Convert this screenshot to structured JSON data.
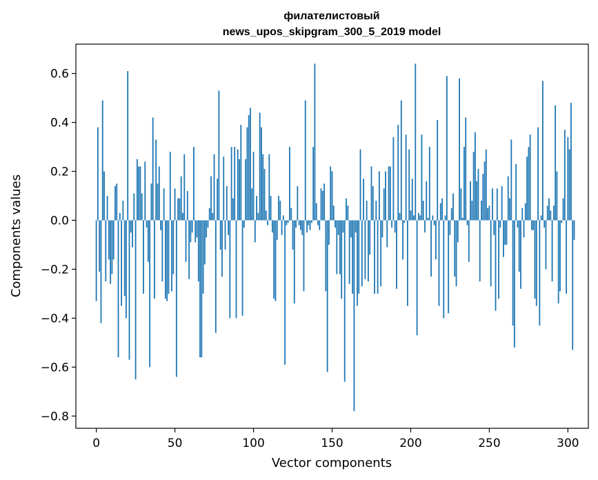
{
  "chart_data": {
    "type": "bar",
    "title": "филателистовый",
    "subtitle": "news_upos_skipgram_300_5_2019 model",
    "xlabel": "Vector components",
    "ylabel": "Components values",
    "xlim": [
      -13,
      313
    ],
    "ylim": [
      -0.85,
      0.72
    ],
    "xticks": [
      0,
      50,
      100,
      150,
      200,
      250,
      300
    ],
    "yticks": [
      -0.8,
      -0.6,
      -0.4,
      -0.2,
      0.0,
      0.2,
      0.4,
      0.6
    ],
    "ytick_labels": [
      "−0.8",
      "−0.6",
      "−0.4",
      "−0.2",
      "0.0",
      "0.2",
      "0.4",
      "0.6"
    ],
    "xtick_labels": [
      "0",
      "50",
      "100",
      "150",
      "200",
      "250",
      "300"
    ],
    "bar_color": "#1f77b4",
    "grid": false,
    "values": [
      -0.33,
      0.38,
      -0.21,
      -0.42,
      0.49,
      0.2,
      -0.25,
      0.1,
      -0.16,
      -0.26,
      -0.22,
      -0.16,
      0.14,
      0.15,
      -0.56,
      0.03,
      -0.35,
      0.08,
      -0.31,
      -0.4,
      0.61,
      -0.57,
      -0.05,
      -0.11,
      0.11,
      -0.65,
      0.25,
      0.22,
      0.22,
      0.11,
      -0.3,
      0.24,
      -0.03,
      -0.17,
      -0.6,
      0.15,
      0.42,
      -0.32,
      0.33,
      0.15,
      0.22,
      -0.04,
      -0.25,
      0.13,
      -0.32,
      -0.33,
      -0.3,
      0.28,
      -0.29,
      -0.22,
      0.13,
      -0.64,
      0.09,
      0.09,
      0.18,
      0.03,
      0.27,
      -0.17,
      0.12,
      -0.24,
      -0.09,
      -0.05,
      0.3,
      -0.09,
      -0.07,
      -0.25,
      -0.56,
      -0.56,
      -0.3,
      -0.18,
      -0.07,
      -0.03,
      0.05,
      0.18,
      0.03,
      0.27,
      -0.46,
      0.17,
      0.53,
      -0.12,
      -0.23,
      0.26,
      -0.12,
      0.14,
      -0.06,
      -0.4,
      0.3,
      0.09,
      0.3,
      -0.4,
      0.29,
      0.25,
      0.39,
      -0.39,
      -0.03,
      0.25,
      0.38,
      0.43,
      0.46,
      0.13,
      0.28,
      -0.09,
      0.1,
      0.03,
      0.44,
      0.38,
      0.27,
      0.21,
      0.04,
      -0.02,
      0.27,
      0.1,
      -0.05,
      -0.32,
      -0.33,
      -0.08,
      0.1,
      0.08,
      -0.06,
      0.02,
      -0.59,
      -0.02,
      -0.01,
      0.3,
      0.05,
      -0.12,
      -0.34,
      -0.03,
      0.14,
      -0.02,
      -0.04,
      -0.06,
      -0.29,
      0.49,
      -0.05,
      -0.02,
      -0.04,
      -0.01,
      0.3,
      0.64,
      0.07,
      -0.02,
      -0.04,
      0.13,
      0.12,
      0.15,
      -0.29,
      -0.62,
      -0.1,
      0.22,
      0.2,
      0.06,
      -0.03,
      -0.22,
      -0.06,
      -0.22,
      -0.32,
      -0.05,
      -0.66,
      0.09,
      0.06,
      -0.26,
      -0.07,
      -0.3,
      -0.78,
      -0.05,
      -0.35,
      -0.3,
      0.29,
      -0.27,
      0.17,
      -0.24,
      0.08,
      -0.25,
      -0.14,
      0.22,
      0.14,
      -0.3,
      0.08,
      -0.3,
      0.2,
      -0.27,
      -0.07,
      0.13,
      0.2,
      -0.11,
      0.22,
      0.22,
      -0.03,
      0.34,
      -0.05,
      -0.28,
      0.39,
      0.03,
      0.49,
      -0.16,
      -0.01,
      0.35,
      -0.35,
      0.29,
      0.04,
      0.17,
      0.02,
      0.64,
      -0.47,
      0.03,
      0.02,
      0.35,
      0.08,
      -0.05,
      0.16,
      0.01,
      0.3,
      -0.23,
      0.02,
      -0.02,
      -0.16,
      0.41,
      -0.35,
      0.07,
      0.09,
      -0.4,
      0.02,
      0.59,
      -0.38,
      -0.06,
      0.05,
      0.11,
      -0.23,
      -0.27,
      -0.09,
      0.58,
      0.13,
      0.01,
      0.3,
      0.42,
      -0.02,
      -0.17,
      0.16,
      0.08,
      0.28,
      0.36,
      0.16,
      0.21,
      -0.25,
      0.08,
      0.19,
      0.24,
      0.29,
      0.05,
      0.06,
      -0.27,
      0.13,
      -0.06,
      -0.37,
      0.13,
      -0.32,
      -0.03,
      0.14,
      -0.15,
      -0.1,
      -0.1,
      0.18,
      0.09,
      0.33,
      -0.43,
      -0.52,
      0.23,
      -0.03,
      -0.21,
      -0.28,
      0.05,
      -0.07,
      0.07,
      0.26,
      0.3,
      0.35,
      -0.04,
      -0.04,
      -0.32,
      -0.35,
      0.38,
      -0.43,
      0.02,
      0.57,
      -0.03,
      -0.2,
      0.06,
      0.09,
      0.04,
      -0.25,
      0.06,
      0.47,
      0.2,
      -0.34,
      -0.29,
      -0.01,
      0.09,
      0.37,
      -0.3,
      0.34,
      0.29,
      0.48,
      -0.53,
      -0.08
    ]
  }
}
